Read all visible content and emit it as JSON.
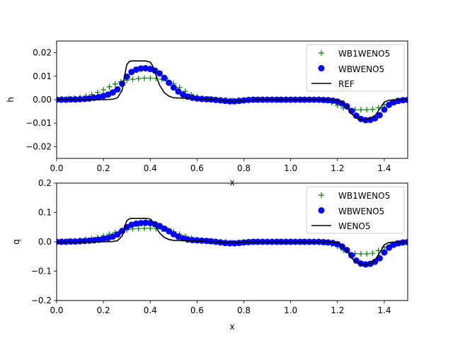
{
  "colors": {
    "wb1": "#008000",
    "wb": "#0000ff",
    "ref": "#000000"
  },
  "chart_data": [
    {
      "type": "line",
      "xlabel": "x",
      "ylabel": "h",
      "xlim": [
        0,
        1.5
      ],
      "ylim": [
        -0.025,
        0.025
      ],
      "xticks": [
        "0.0",
        "0.2",
        "0.4",
        "0.6",
        "0.8",
        "1.0",
        "1.2",
        "1.4"
      ],
      "yticks": [
        "0.02",
        "0.01",
        "0.00",
        "−0.01",
        "−0.02"
      ],
      "legend_position": "upper-right",
      "series": [
        {
          "name": "WB1WENO5",
          "marker": "plus",
          "color": "#008000",
          "x": [
            0.0,
            0.025,
            0.05,
            0.075,
            0.1,
            0.125,
            0.15,
            0.175,
            0.2,
            0.225,
            0.25,
            0.275,
            0.3,
            0.325,
            0.35,
            0.375,
            0.4,
            0.425,
            0.45,
            0.475,
            0.5,
            0.525,
            0.55,
            0.575,
            0.6,
            0.625,
            0.65,
            0.675,
            0.7,
            0.725,
            0.75,
            0.775,
            0.8,
            0.825,
            0.85,
            0.875,
            0.9,
            0.925,
            0.95,
            0.975,
            1.0,
            1.025,
            1.05,
            1.075,
            1.1,
            1.125,
            1.15,
            1.175,
            1.2,
            1.225,
            1.25,
            1.275,
            1.3,
            1.325,
            1.35,
            1.375,
            1.4,
            1.425,
            1.45,
            1.475,
            1.5
          ],
          "y": [
            0.0002,
            0.0003,
            0.0005,
            0.0007,
            0.001,
            0.0015,
            0.0022,
            0.0031,
            0.0042,
            0.0055,
            0.0067,
            0.0076,
            0.0083,
            0.0087,
            0.009,
            0.0092,
            0.0092,
            0.0091,
            0.0087,
            0.008,
            0.0068,
            0.0052,
            0.0036,
            0.0022,
            0.0012,
            0.0006,
            0.0003,
            0.0001,
            0.0,
            -0.0002,
            -0.0003,
            -0.0003,
            -0.0002,
            -0.0001,
            0.0,
            0.0,
            0.0,
            0.0,
            0.0,
            0.0,
            0.0,
            0.0,
            0.0,
            0.0,
            0.0,
            -0.0001,
            -0.0004,
            -0.0012,
            -0.0024,
            -0.0035,
            -0.0041,
            -0.0043,
            -0.0043,
            -0.0043,
            -0.0041,
            -0.0034,
            -0.0022,
            -0.0012,
            -0.0006,
            -0.0002,
            -0.0001
          ]
        },
        {
          "name": "WBWENO5",
          "marker": "circle",
          "color": "#0000ff",
          "x": [
            0.0,
            0.02,
            0.04,
            0.06,
            0.08,
            0.1,
            0.12,
            0.14,
            0.16,
            0.18,
            0.2,
            0.22,
            0.24,
            0.26,
            0.28,
            0.3,
            0.32,
            0.34,
            0.36,
            0.38,
            0.4,
            0.42,
            0.44,
            0.46,
            0.48,
            0.5,
            0.52,
            0.54,
            0.56,
            0.58,
            0.6,
            0.62,
            0.64,
            0.66,
            0.68,
            0.7,
            0.72,
            0.74,
            0.76,
            0.78,
            0.8,
            0.82,
            0.84,
            0.86,
            0.88,
            0.9,
            0.92,
            0.94,
            0.96,
            0.98,
            1.0,
            1.02,
            1.04,
            1.06,
            1.08,
            1.1,
            1.12,
            1.14,
            1.16,
            1.18,
            1.2,
            1.22,
            1.24,
            1.26,
            1.28,
            1.3,
            1.32,
            1.34,
            1.36,
            1.38,
            1.4,
            1.42,
            1.44,
            1.46,
            1.48,
            1.5
          ],
          "y": [
            0.0,
            0.0,
            0.0,
            0.0001,
            0.0001,
            0.0002,
            0.0003,
            0.0005,
            0.0008,
            0.0011,
            0.0016,
            0.0022,
            0.0031,
            0.0044,
            0.0068,
            0.0098,
            0.0118,
            0.0128,
            0.0133,
            0.0134,
            0.0131,
            0.0124,
            0.0112,
            0.0093,
            0.0072,
            0.0052,
            0.0035,
            0.0022,
            0.0013,
            0.0008,
            0.0005,
            0.0003,
            0.0002,
            0.0001,
            -0.0001,
            -0.0003,
            -0.0005,
            -0.0007,
            -0.0007,
            -0.0005,
            -0.0003,
            -0.0001,
            0.0,
            0.0,
            0.0,
            0.0,
            0.0,
            0.0,
            0.0,
            0.0,
            0.0,
            0.0,
            0.0,
            0.0,
            0.0,
            0.0,
            0.0,
            -0.0001,
            -0.0002,
            -0.0004,
            -0.0008,
            -0.0016,
            -0.0028,
            -0.0048,
            -0.0068,
            -0.0082,
            -0.0087,
            -0.0086,
            -0.0079,
            -0.0066,
            -0.0042,
            -0.0022,
            -0.0011,
            -0.0005,
            -0.0002,
            -0.0001
          ]
        },
        {
          "name": "REF",
          "marker": "line",
          "color": "#000000",
          "x": [
            0.0,
            0.2,
            0.24,
            0.26,
            0.28,
            0.29,
            0.3,
            0.31,
            0.32,
            0.38,
            0.4,
            0.41,
            0.42,
            0.43,
            0.44,
            0.46,
            0.48,
            0.5,
            0.55,
            0.6,
            0.65,
            0.7,
            0.75,
            0.8,
            0.85,
            1.15,
            1.19,
            1.21,
            1.24,
            1.26,
            1.28,
            1.3,
            1.32,
            1.34,
            1.36,
            1.38,
            1.4,
            1.42,
            1.46,
            1.5
          ],
          "y": [
            0.0,
            0.0,
            0.0002,
            0.0008,
            0.004,
            0.01,
            0.015,
            0.0162,
            0.0165,
            0.0165,
            0.016,
            0.0145,
            0.0118,
            0.0088,
            0.0062,
            0.003,
            0.0015,
            0.0008,
            0.0006,
            0.0004,
            0.0002,
            -0.0003,
            -0.0008,
            -0.0003,
            0.0,
            0.0,
            -0.0002,
            -0.0008,
            -0.003,
            -0.006,
            -0.0078,
            -0.0086,
            -0.0086,
            -0.008,
            -0.0068,
            -0.004,
            -0.001,
            -0.0002,
            0.0,
            0.0
          ]
        }
      ]
    },
    {
      "type": "line",
      "xlabel": "x",
      "ylabel": "q",
      "xlim": [
        0,
        1.5
      ],
      "ylim": [
        -0.2,
        0.2
      ],
      "xticks": [
        "0.0",
        "0.2",
        "0.4",
        "0.6",
        "0.8",
        "1.0",
        "1.2",
        "1.4"
      ],
      "yticks": [
        "0.2",
        "0.1",
        "0.0",
        "−0.1",
        "−0.2"
      ],
      "legend_position": "upper-right",
      "series": [
        {
          "name": "WB1WENO5",
          "marker": "plus",
          "color": "#008000",
          "x": [
            0.0,
            0.025,
            0.05,
            0.075,
            0.1,
            0.125,
            0.15,
            0.175,
            0.2,
            0.225,
            0.25,
            0.275,
            0.3,
            0.325,
            0.35,
            0.375,
            0.4,
            0.425,
            0.45,
            0.475,
            0.5,
            0.525,
            0.55,
            0.575,
            0.6,
            0.625,
            0.65,
            0.675,
            0.7,
            0.725,
            0.75,
            0.775,
            0.8,
            0.825,
            0.85,
            0.875,
            0.9,
            0.925,
            0.95,
            0.975,
            1.0,
            1.025,
            1.05,
            1.075,
            1.1,
            1.125,
            1.15,
            1.175,
            1.2,
            1.225,
            1.25,
            1.275,
            1.3,
            1.325,
            1.35,
            1.375,
            1.4,
            1.425,
            1.45,
            1.475,
            1.5
          ],
          "y": [
            0.001,
            0.002,
            0.003,
            0.004,
            0.006,
            0.008,
            0.011,
            0.015,
            0.02,
            0.026,
            0.032,
            0.037,
            0.041,
            0.044,
            0.045,
            0.046,
            0.046,
            0.045,
            0.043,
            0.04,
            0.034,
            0.026,
            0.019,
            0.012,
            0.007,
            0.004,
            0.002,
            0.001,
            0.0,
            -0.001,
            -0.002,
            -0.002,
            -0.001,
            0.0,
            0.0,
            0.0,
            0.0,
            0.0,
            0.0,
            0.0,
            0.0,
            0.0,
            0.0,
            0.0,
            0.0,
            -0.001,
            -0.003,
            -0.008,
            -0.016,
            -0.028,
            -0.036,
            -0.04,
            -0.041,
            -0.041,
            -0.039,
            -0.03,
            -0.018,
            -0.01,
            -0.005,
            -0.002,
            -0.001
          ]
        },
        {
          "name": "WBWENO5",
          "marker": "circle",
          "color": "#0000ff",
          "x": [
            0.0,
            0.02,
            0.04,
            0.06,
            0.08,
            0.1,
            0.12,
            0.14,
            0.16,
            0.18,
            0.2,
            0.22,
            0.24,
            0.26,
            0.28,
            0.3,
            0.32,
            0.34,
            0.36,
            0.38,
            0.4,
            0.42,
            0.44,
            0.46,
            0.48,
            0.5,
            0.52,
            0.54,
            0.56,
            0.58,
            0.6,
            0.62,
            0.64,
            0.66,
            0.68,
            0.7,
            0.72,
            0.74,
            0.76,
            0.78,
            0.8,
            0.82,
            0.84,
            0.86,
            0.88,
            0.9,
            0.92,
            0.94,
            0.96,
            0.98,
            1.0,
            1.02,
            1.04,
            1.06,
            1.08,
            1.1,
            1.12,
            1.14,
            1.16,
            1.18,
            1.2,
            1.22,
            1.24,
            1.26,
            1.28,
            1.3,
            1.32,
            1.34,
            1.36,
            1.38,
            1.4,
            1.42,
            1.44,
            1.46,
            1.48,
            1.5
          ],
          "y": [
            0.0,
            0.0,
            0.0,
            0.001,
            0.001,
            0.002,
            0.003,
            0.004,
            0.005,
            0.007,
            0.01,
            0.013,
            0.018,
            0.025,
            0.037,
            0.05,
            0.058,
            0.062,
            0.064,
            0.065,
            0.064,
            0.06,
            0.054,
            0.045,
            0.036,
            0.026,
            0.018,
            0.012,
            0.008,
            0.006,
            0.005,
            0.004,
            0.003,
            0.002,
            0.0,
            -0.002,
            -0.004,
            -0.005,
            -0.005,
            -0.004,
            -0.002,
            -0.001,
            0.0,
            0.0,
            0.0,
            0.0,
            0.0,
            0.0,
            0.0,
            0.0,
            0.0,
            0.0,
            0.0,
            0.0,
            0.0,
            0.0,
            0.0,
            -0.001,
            -0.002,
            -0.004,
            -0.008,
            -0.016,
            -0.028,
            -0.046,
            -0.064,
            -0.074,
            -0.077,
            -0.075,
            -0.068,
            -0.056,
            -0.036,
            -0.02,
            -0.01,
            -0.005,
            -0.002,
            -0.001
          ]
        },
        {
          "name": "WENO5",
          "marker": "line",
          "color": "#000000",
          "x": [
            0.0,
            0.2,
            0.24,
            0.26,
            0.28,
            0.29,
            0.3,
            0.31,
            0.32,
            0.38,
            0.4,
            0.41,
            0.42,
            0.43,
            0.44,
            0.46,
            0.48,
            0.5,
            0.55,
            0.6,
            0.65,
            0.7,
            0.75,
            0.8,
            0.85,
            1.15,
            1.19,
            1.21,
            1.24,
            1.26,
            1.28,
            1.3,
            1.32,
            1.34,
            1.36,
            1.38,
            1.4,
            1.42,
            1.46,
            1.5
          ],
          "y": [
            0.0,
            0.0,
            0.001,
            0.004,
            0.02,
            0.05,
            0.072,
            0.078,
            0.08,
            0.08,
            0.078,
            0.07,
            0.057,
            0.043,
            0.03,
            0.015,
            0.008,
            0.005,
            0.004,
            0.003,
            0.001,
            -0.001,
            -0.003,
            -0.001,
            0.0,
            0.0,
            -0.002,
            -0.008,
            -0.03,
            -0.055,
            -0.07,
            -0.076,
            -0.077,
            -0.073,
            -0.062,
            -0.038,
            -0.01,
            -0.002,
            0.0,
            0.0
          ]
        }
      ]
    }
  ]
}
